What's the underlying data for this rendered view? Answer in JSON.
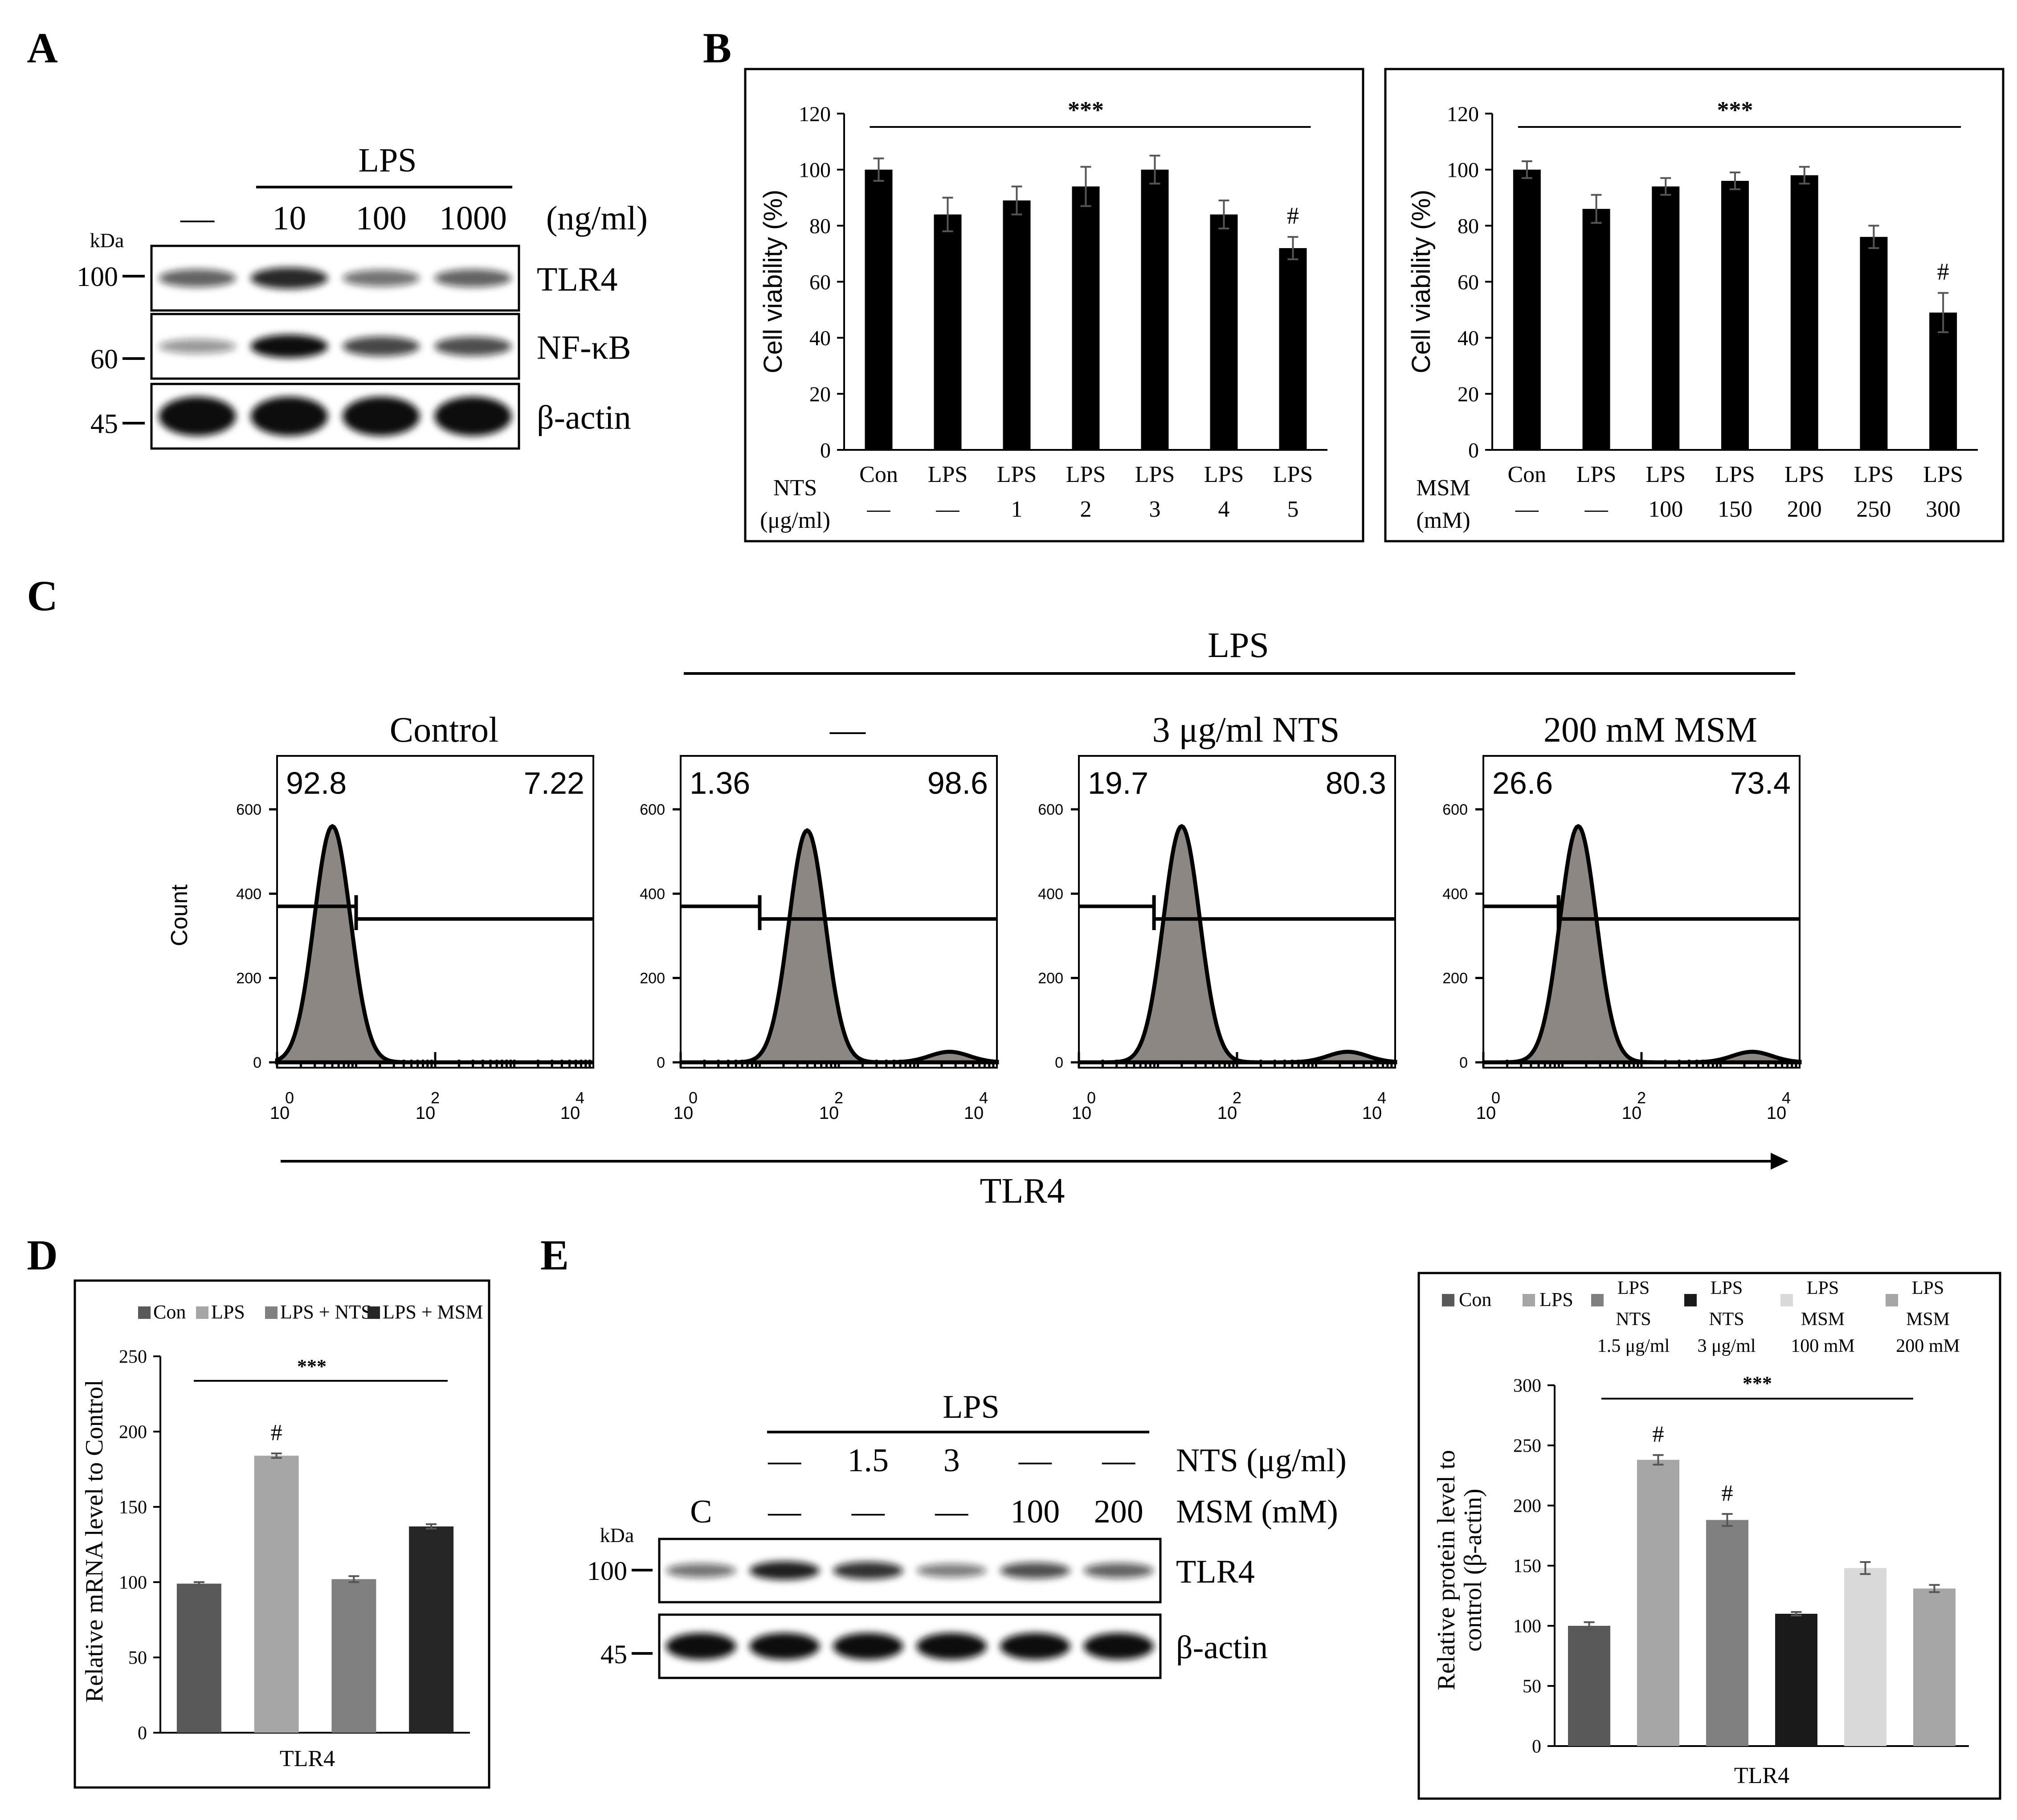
{
  "panel_labels": [
    "A",
    "B",
    "C",
    "D",
    "E"
  ],
  "colors": {
    "black": "#000000",
    "hist_fill": "#8c8782",
    "blot_dark": "#111111",
    "con": "#595959",
    "lps": "#a6a6a6",
    "nts": "#808080",
    "msm": "#262626",
    "nts3": "#1a1a1a",
    "msm100": "#d9d9d9",
    "msm200": "#a6a6a6"
  },
  "panel_a": {
    "group_label": "LPS",
    "lane_labels": [
      "—",
      "10",
      "100",
      "1000"
    ],
    "unit": "(ng/ml)",
    "kda_label": "kDa",
    "markers": [
      "100",
      "60",
      "45"
    ],
    "bands": [
      "TLR4",
      "NF-κB",
      "β-actin"
    ],
    "intensities": {
      "TLR4": [
        0.55,
        0.85,
        0.45,
        0.55
      ],
      "NF-κB": [
        0.25,
        1.0,
        0.7,
        0.65
      ],
      "β-actin": [
        1.0,
        1.0,
        1.0,
        1.0
      ]
    }
  },
  "panel_e_blot": {
    "group_label": "LPS",
    "lane_label_c": "C",
    "nts_row": [
      "",
      "—",
      "1.5",
      "3",
      "—",
      "—"
    ],
    "msm_row": [
      "",
      "—",
      "—",
      "—",
      "100",
      "200"
    ],
    "nts_label": "NTS (μg/ml)",
    "msm_label": "MSM (mM)",
    "kda_label": "kDa",
    "markers": [
      "100",
      "45"
    ],
    "bands": [
      "TLR4",
      "β-actin"
    ],
    "intensities": {
      "TLR4": [
        0.45,
        0.9,
        0.8,
        0.4,
        0.65,
        0.55
      ],
      "β-actin": [
        1.0,
        1.0,
        1.0,
        1.0,
        1.0,
        1.0
      ]
    }
  },
  "panel_c": {
    "group_label": "LPS",
    "titles": [
      "Control",
      "—",
      "3 μg/ml NTS",
      "200 mM MSM"
    ],
    "left_pct": [
      "92.8",
      "1.36",
      "19.7",
      "26.6"
    ],
    "right_pct": [
      "7.22",
      "98.6",
      "80.3",
      "73.4"
    ],
    "ylabel": "Count",
    "xlabel": "TLR4",
    "yticks": [
      "0",
      "200",
      "400",
      "600"
    ],
    "xtick_base": "10",
    "xtick_exp": [
      "0",
      "2",
      "4"
    ],
    "peak_log": [
      0.7,
      1.6,
      1.3,
      1.2
    ],
    "peak_count": [
      560,
      550,
      560,
      560
    ]
  },
  "chart_data": [
    {
      "id": "B-left",
      "type": "bar",
      "ylabel": "Cell viability (%)",
      "ylim": [
        0,
        120
      ],
      "yticks": [
        "0",
        "20",
        "40",
        "60",
        "80",
        "100",
        "120"
      ],
      "categories": [
        "Con",
        "LPS",
        "LPS",
        "LPS",
        "LPS",
        "LPS",
        "LPS"
      ],
      "row_label_1": "NTS",
      "row_label_2": "(μg/ml)",
      "dose": [
        "—",
        "—",
        "1",
        "2",
        "3",
        "4",
        "5"
      ],
      "values": [
        100,
        84,
        89,
        94,
        100,
        84,
        72
      ],
      "errors": [
        4,
        6,
        5,
        7,
        5,
        5,
        4
      ],
      "annotations": [
        "",
        "",
        "",
        "",
        "",
        "",
        "#"
      ],
      "sig": "***"
    },
    {
      "id": "B-right",
      "type": "bar",
      "ylabel": "Cell viability (%)",
      "ylim": [
        0,
        120
      ],
      "yticks": [
        "0",
        "20",
        "40",
        "60",
        "80",
        "100",
        "120"
      ],
      "categories": [
        "Con",
        "LPS",
        "LPS",
        "LPS",
        "LPS",
        "LPS",
        "LPS"
      ],
      "row_label_1": "MSM",
      "row_label_2": "(mM)",
      "dose": [
        "—",
        "—",
        "100",
        "150",
        "200",
        "250",
        "300"
      ],
      "values": [
        100,
        86,
        94,
        96,
        98,
        76,
        49
      ],
      "errors": [
        3,
        5,
        3,
        3,
        3,
        4,
        7
      ],
      "annotations": [
        "",
        "",
        "",
        "",
        "",
        "",
        "#"
      ],
      "sig": "***"
    },
    {
      "id": "D",
      "type": "bar",
      "ylabel": "Relative mRNA level to Control",
      "xlabel": "TLR4",
      "ylim": [
        0,
        250
      ],
      "yticks": [
        "0",
        "50",
        "100",
        "150",
        "200",
        "250"
      ],
      "series": [
        {
          "name": "Con",
          "value": 99,
          "error": 1
        },
        {
          "name": "LPS",
          "value": 184,
          "error": 1.5
        },
        {
          "name": "LPS + NTS",
          "value": 102,
          "error": 2
        },
        {
          "name": "LPS + MSM",
          "value": 137,
          "error": 1.5
        }
      ],
      "annotations": [
        "",
        "#",
        "",
        ""
      ],
      "sig": "***"
    },
    {
      "id": "E-right",
      "type": "bar",
      "ylabel_1": "Relative protein level to",
      "ylabel_2": "control (β-actin)",
      "xlabel": "TLR4",
      "ylim": [
        0,
        300
      ],
      "yticks": [
        "0",
        "50",
        "100",
        "150",
        "200",
        "250",
        "300"
      ],
      "series": [
        {
          "name": "Con",
          "sub": [
            "Con"
          ],
          "value": 100,
          "error": 3
        },
        {
          "name": "LPS",
          "sub": [
            "LPS"
          ],
          "value": 238,
          "error": 4
        },
        {
          "name": "LPS NTS 1.5 μg/ml",
          "sub": [
            "LPS",
            "NTS",
            "1.5 μg/ml"
          ],
          "value": 188,
          "error": 5
        },
        {
          "name": "LPS NTS 3 μg/ml",
          "sub": [
            "LPS",
            "NTS",
            "3 μg/ml"
          ],
          "value": 110,
          "error": 1.5
        },
        {
          "name": "LPS MSM 100 mM",
          "sub": [
            "LPS",
            "MSM",
            "100 mM"
          ],
          "value": 148,
          "error": 5
        },
        {
          "name": "LPS MSM 200 mM",
          "sub": [
            "LPS",
            "MSM",
            "200 mM"
          ],
          "value": 131,
          "error": 3
        }
      ],
      "annotations": [
        "",
        "#",
        "#",
        "",
        "",
        ""
      ],
      "sig": "***"
    }
  ]
}
